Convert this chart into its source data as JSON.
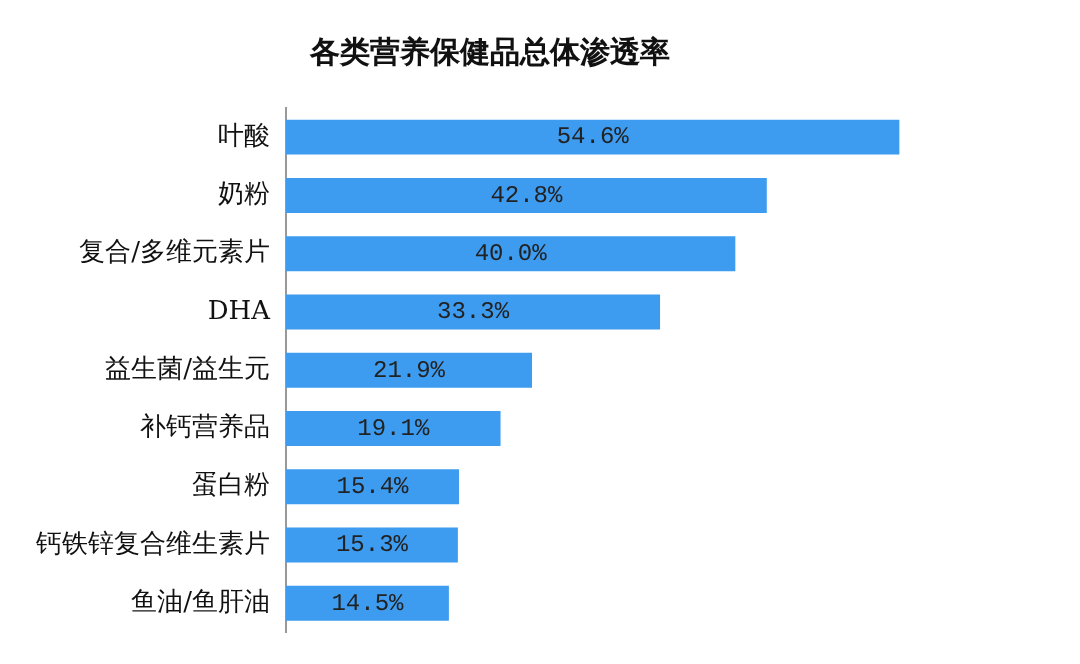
{
  "chart_data": {
    "type": "bar",
    "orientation": "horizontal",
    "title": "各类营养保健品总体渗透率",
    "categories": [
      "叶酸",
      "奶粉",
      "复合/多维元素片",
      "DHA",
      "益生菌/益生元",
      "补钙营养品",
      "蛋白粉",
      "钙铁锌复合维生素片",
      "鱼油/鱼肝油"
    ],
    "values": [
      54.6,
      42.8,
      40.0,
      33.3,
      21.9,
      19.1,
      15.4,
      15.3,
      14.5
    ],
    "value_labels": [
      "54.6%",
      "42.8%",
      "40.0%",
      "33.3%",
      "21.9%",
      "19.1%",
      "15.4%",
      "15.3%",
      "14.5%"
    ],
    "color": "#3d9cf0",
    "legend": false
  }
}
